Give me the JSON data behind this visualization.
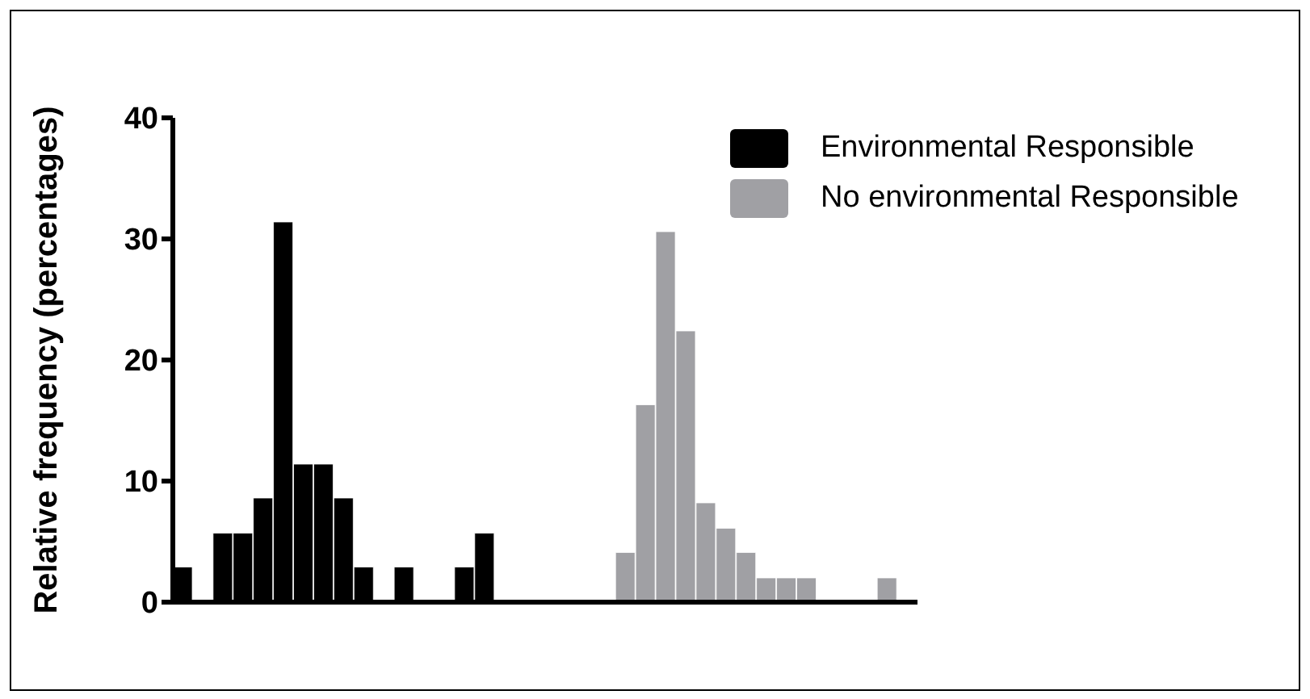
{
  "chart_data": {
    "type": "bar",
    "ylabel": "Relative frequency (percentages)",
    "categories": [
      null,
      null,
      null,
      null,
      null,
      null,
      null,
      null,
      null,
      null,
      null,
      null,
      null,
      null,
      null,
      null,
      null,
      null,
      null,
      null,
      null,
      null,
      null,
      null,
      null,
      null,
      null,
      null,
      null,
      null,
      null,
      null,
      null,
      null,
      null,
      null,
      null
    ],
    "series": [
      {
        "name": "Environmental Responsible",
        "color": "#000000",
        "values": [
          2.9,
          null,
          5.7,
          5.7,
          8.6,
          31.4,
          11.4,
          11.4,
          8.6,
          2.9,
          null,
          2.9,
          null,
          null,
          2.9,
          5.7,
          null,
          null,
          null,
          null,
          null,
          null,
          null,
          null,
          null,
          null,
          null,
          null,
          null,
          null,
          null,
          null,
          null,
          null,
          null,
          null,
          null
        ]
      },
      {
        "name": "No environmental Responsible",
        "color": "#a0a0a4",
        "values": [
          null,
          null,
          null,
          null,
          null,
          null,
          null,
          null,
          null,
          null,
          null,
          null,
          null,
          null,
          null,
          null,
          null,
          null,
          null,
          null,
          null,
          null,
          4.1,
          16.3,
          30.6,
          22.4,
          8.2,
          6.1,
          4.1,
          2,
          2,
          2,
          null,
          null,
          null,
          2,
          null
        ]
      }
    ],
    "ylim": [
      0,
      40
    ],
    "yticks": [
      0,
      10,
      20,
      30,
      40
    ],
    "grid": false,
    "legend": "top right",
    "tick_labels": "y"
  }
}
